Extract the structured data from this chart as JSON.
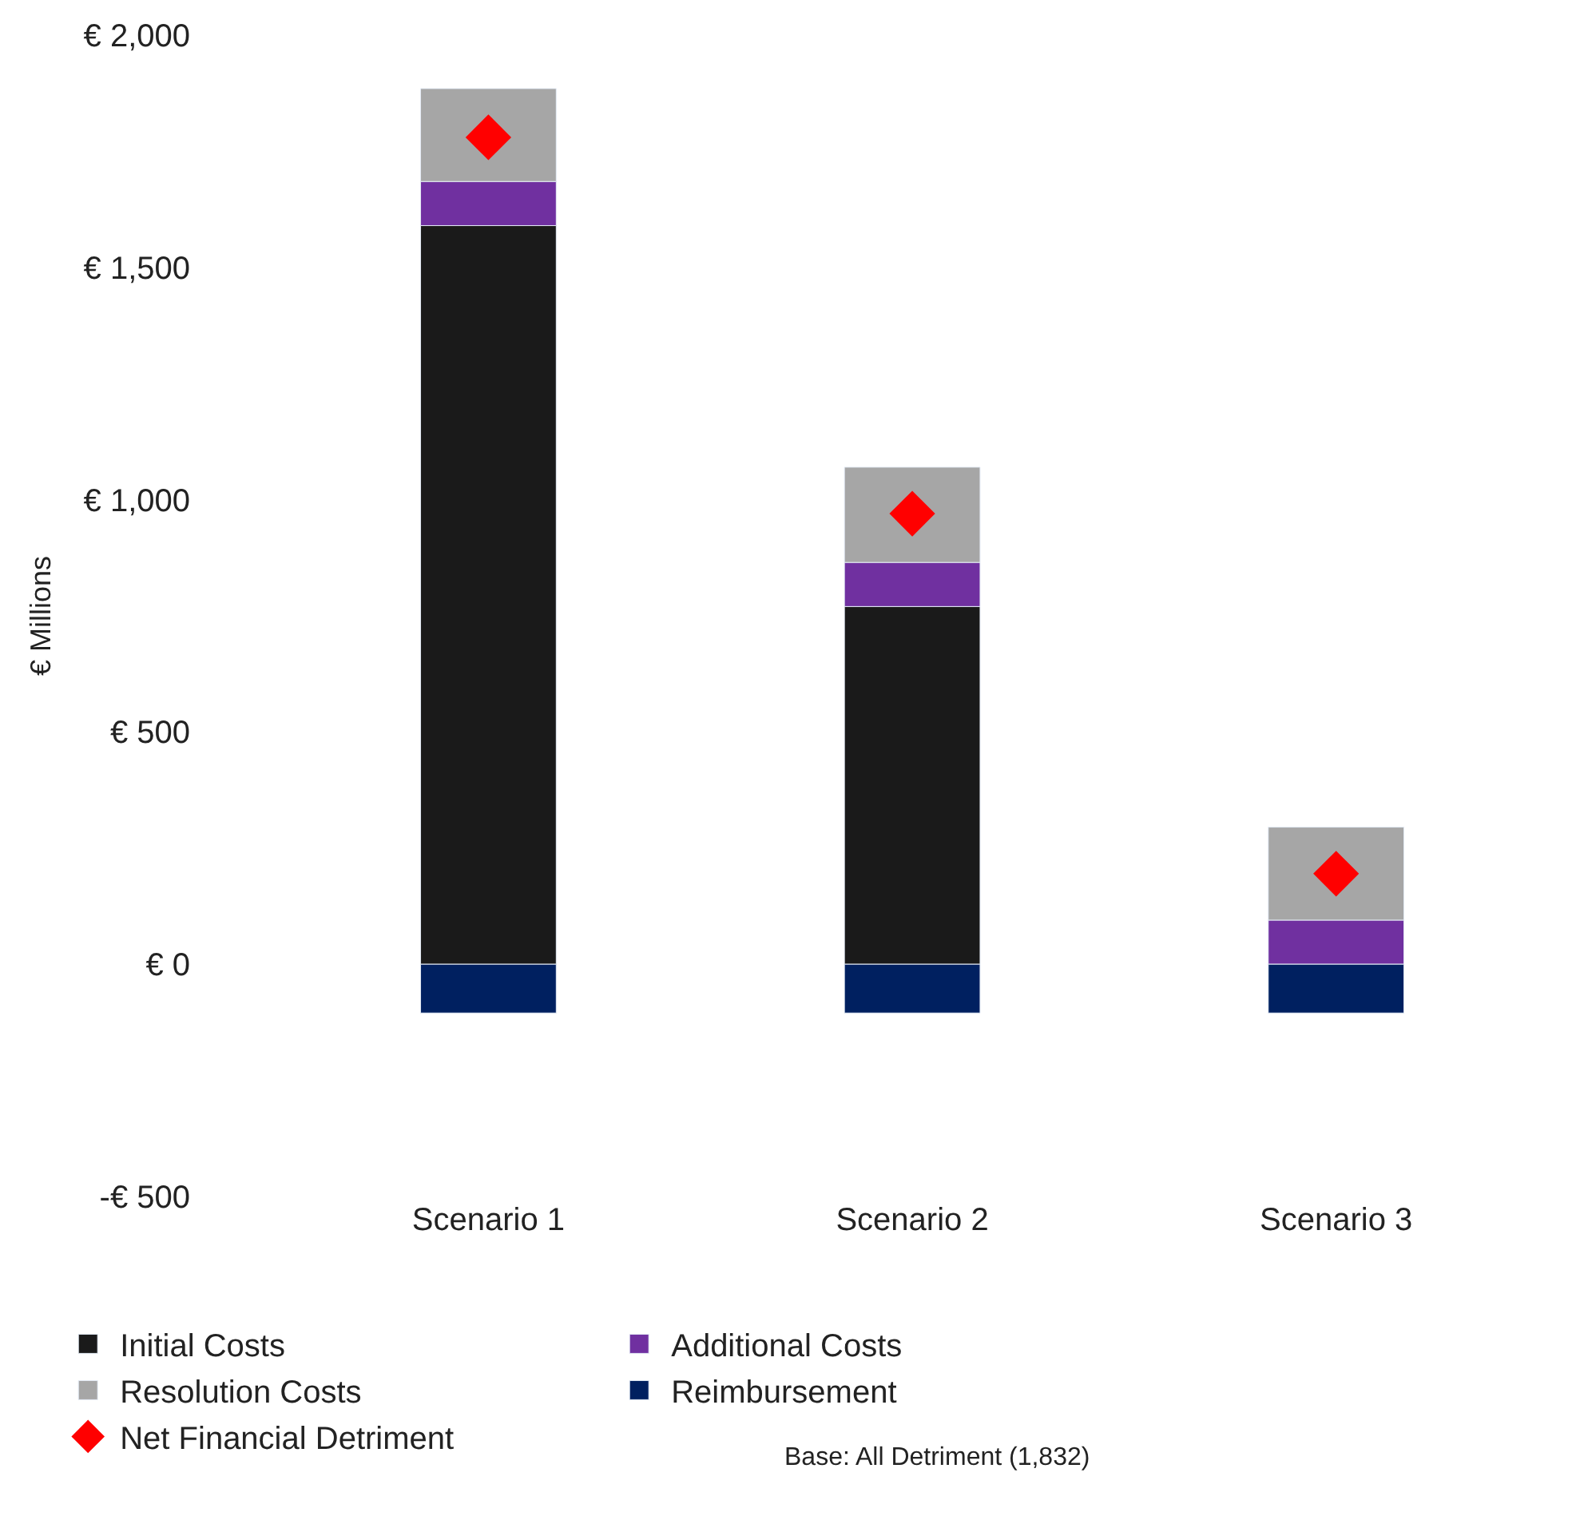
{
  "chart_data": {
    "type": "bar",
    "stacked": true,
    "ylabel": "€ Millions",
    "categories": [
      "Scenario 1",
      "Scenario 2",
      "Scenario 3"
    ],
    "series": [
      {
        "name": "Initial Costs",
        "color": "#1a1a1a",
        "values": [
          1590,
          770,
          0
        ]
      },
      {
        "name": "Additional Costs",
        "color": "#7030a0",
        "values": [
          95,
          95,
          95
        ]
      },
      {
        "name": "Resolution Costs",
        "color": "#a6a6a6",
        "values": [
          200,
          205,
          200
        ]
      },
      {
        "name": "Reimbursement",
        "color": "#002060",
        "values": [
          -105,
          -105,
          -105
        ]
      },
      {
        "name": "Net Financial Detriment",
        "type": "scatter",
        "marker": "diamond",
        "color": "#ff0000",
        "x": [
          "Scenario 1",
          "Scenario 2",
          "Scenario 3"
        ],
        "values": [
          1780,
          970,
          195
        ]
      }
    ],
    "ylim": [
      -500,
      2000
    ],
    "yticks": [
      {
        "value": -500,
        "label": "-€ 500"
      },
      {
        "value": 0,
        "label": "€ 0"
      },
      {
        "value": 500,
        "label": "€ 500"
      },
      {
        "value": 1000,
        "label": "€ 1,000"
      },
      {
        "value": 1500,
        "label": "€ 1,500"
      },
      {
        "value": 2000,
        "label": "€ 2,000"
      }
    ],
    "legend": "bottom",
    "annotations": [
      "Base: All Detriment (1,832)"
    ]
  }
}
